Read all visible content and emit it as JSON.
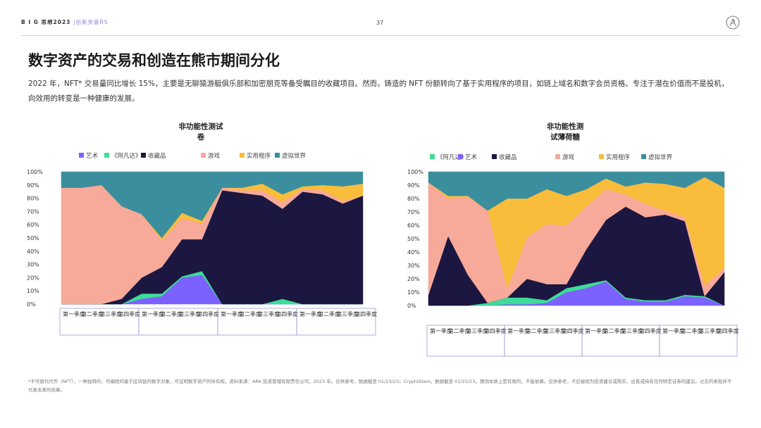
{
  "header": {
    "brand": "B I G",
    "brand_suffix": "思想2023",
    "sub": "|创新资管RS",
    "page_number": "37"
  },
  "title": "数字资产的交易和创造在熊市期间分化",
  "intro": "2022 年，NFT* 交易量同比增长 15%，主要是无聊猿游艇俱乐部和加密朋克等备受瞩目的收藏项目。然而，铸造的 NFT 份额转向了基于实用程序的项目，如链上域名和数字会员资格。专注于潜在价值而不是投机，向效用的转变是一种健康的发展。",
  "footer": "*不可替代代币（NFT），一种独特的、可编程的基于区块链的数字对象，可证明数字资产的所有权。资料来源：ARK 投资管理有限责任公司，2023 年。仅供参考。数据截至 01/23/23；CryptoSlam。数据截至 01/25/23。预测本质上是有限的，不能依赖。仅供参考，不应被视为投资建议或购买、出售或持有任何特定证券的建议。过去的表现并不代表未来的结果。",
  "chart_data": [
    {
      "type": "area",
      "stacked": true,
      "title": "非功能性测试\n卷",
      "ylim": [
        0,
        100
      ],
      "yticks": [
        "0%",
        "10%",
        "20%",
        "30%",
        "40%",
        "50%",
        "60%",
        "70%",
        "80%",
        "90%",
        "100%"
      ],
      "legend_position": "top",
      "legend": [
        {
          "label": "艺术",
          "color": "#7b61ff"
        },
        {
          "label": "《阿凡达》",
          "color": "#3ddc97"
        },
        {
          "label": "收藏品",
          "color": "#1b1740"
        },
        {
          "label": "游戏",
          "color": "#f7a99a"
        },
        {
          "label": "实用程序",
          "color": "#f9bd3b"
        },
        {
          "label": "虚拟世界",
          "color": "#3b8e9e"
        }
      ],
      "quarter_labels": [
        "第一季度",
        "第二季度",
        "第三季度",
        "第四季度"
      ],
      "x_points": 16,
      "series": [
        {
          "name": "艺术",
          "color": "#7b61ff",
          "values": [
            0,
            0,
            0,
            0,
            4,
            6,
            20,
            22,
            0,
            0,
            0,
            0,
            0,
            0,
            0,
            0
          ]
        },
        {
          "name": "《阿凡达》",
          "color": "#3ddc97",
          "values": [
            0,
            0,
            0,
            0,
            4,
            2,
            1,
            3,
            0,
            0,
            0,
            4,
            0,
            0,
            0,
            0
          ]
        },
        {
          "name": "收藏品",
          "color": "#1b1740",
          "values": [
            0,
            0,
            0,
            4,
            12,
            20,
            28,
            24,
            86,
            84,
            82,
            68,
            85,
            83,
            76,
            82
          ]
        },
        {
          "name": "游戏",
          "color": "#f7a99a",
          "values": [
            88,
            88,
            90,
            70,
            48,
            20,
            16,
            12,
            2,
            2,
            4,
            5,
            2,
            3,
            2,
            0
          ]
        },
        {
          "name": "实用程序",
          "color": "#f9bd3b",
          "values": [
            0,
            0,
            0,
            0,
            0,
            2,
            4,
            2,
            0,
            2,
            5,
            6,
            2,
            4,
            11,
            9
          ]
        },
        {
          "name": "虚拟世界",
          "color": "#3b8e9e",
          "values": [
            12,
            12,
            10,
            26,
            32,
            50,
            31,
            37,
            12,
            12,
            9,
            17,
            11,
            10,
            11,
            9
          ]
        }
      ]
    },
    {
      "type": "area",
      "stacked": true,
      "title": "非功能性测\n试薄荷糖",
      "ylim": [
        0,
        100
      ],
      "yticks": [
        "0%",
        "10%",
        "20%",
        "30%",
        "40%",
        "50%",
        "60%",
        "70%",
        "80%",
        "90%",
        "100%"
      ],
      "legend_position": "top",
      "legend": [
        {
          "label": "《阿凡达》",
          "color": "#3ddc97"
        },
        {
          "label": "艺术",
          "color": "#7b61ff"
        },
        {
          "label": "收藏品",
          "color": "#1b1740"
        },
        {
          "label": "游戏",
          "color": "#f7a99a"
        },
        {
          "label": "实用程序",
          "color": "#f9bd3b"
        },
        {
          "label": "虚拟世界",
          "color": "#3b8e9e"
        }
      ],
      "quarter_labels": [
        "第一季度",
        "第二季度",
        "第三季度",
        "第四季度"
      ],
      "x_points": 16,
      "series": [
        {
          "name": "艺术",
          "color": "#7b61ff",
          "values": [
            0,
            0,
            0,
            0,
            1,
            1,
            2,
            10,
            13,
            18,
            5,
            3,
            3,
            7,
            6,
            0
          ]
        },
        {
          "name": "《阿凡达》",
          "color": "#3ddc97",
          "values": [
            0,
            0,
            0,
            2,
            5,
            5,
            2,
            3,
            3,
            1,
            1,
            1,
            1,
            1,
            1,
            0
          ]
        },
        {
          "name": "收藏品",
          "color": "#1b1740",
          "values": [
            8,
            52,
            23,
            0,
            0,
            14,
            12,
            3,
            26,
            45,
            68,
            62,
            64,
            55,
            0,
            25
          ]
        },
        {
          "name": "游戏",
          "color": "#f7a99a",
          "values": [
            84,
            28,
            58,
            69,
            7,
            31,
            45,
            44,
            32,
            23,
            9,
            10,
            3,
            3,
            8,
            3
          ]
        },
        {
          "name": "实用程序",
          "color": "#f9bd3b",
          "values": [
            0,
            2,
            1,
            0,
            67,
            29,
            26,
            22,
            13,
            8,
            6,
            16,
            20,
            22,
            81,
            60
          ]
        },
        {
          "name": "虚拟世界",
          "color": "#3b8e9e",
          "values": [
            8,
            18,
            18,
            29,
            20,
            20,
            13,
            18,
            13,
            5,
            11,
            8,
            9,
            12,
            4,
            12
          ]
        }
      ]
    }
  ]
}
